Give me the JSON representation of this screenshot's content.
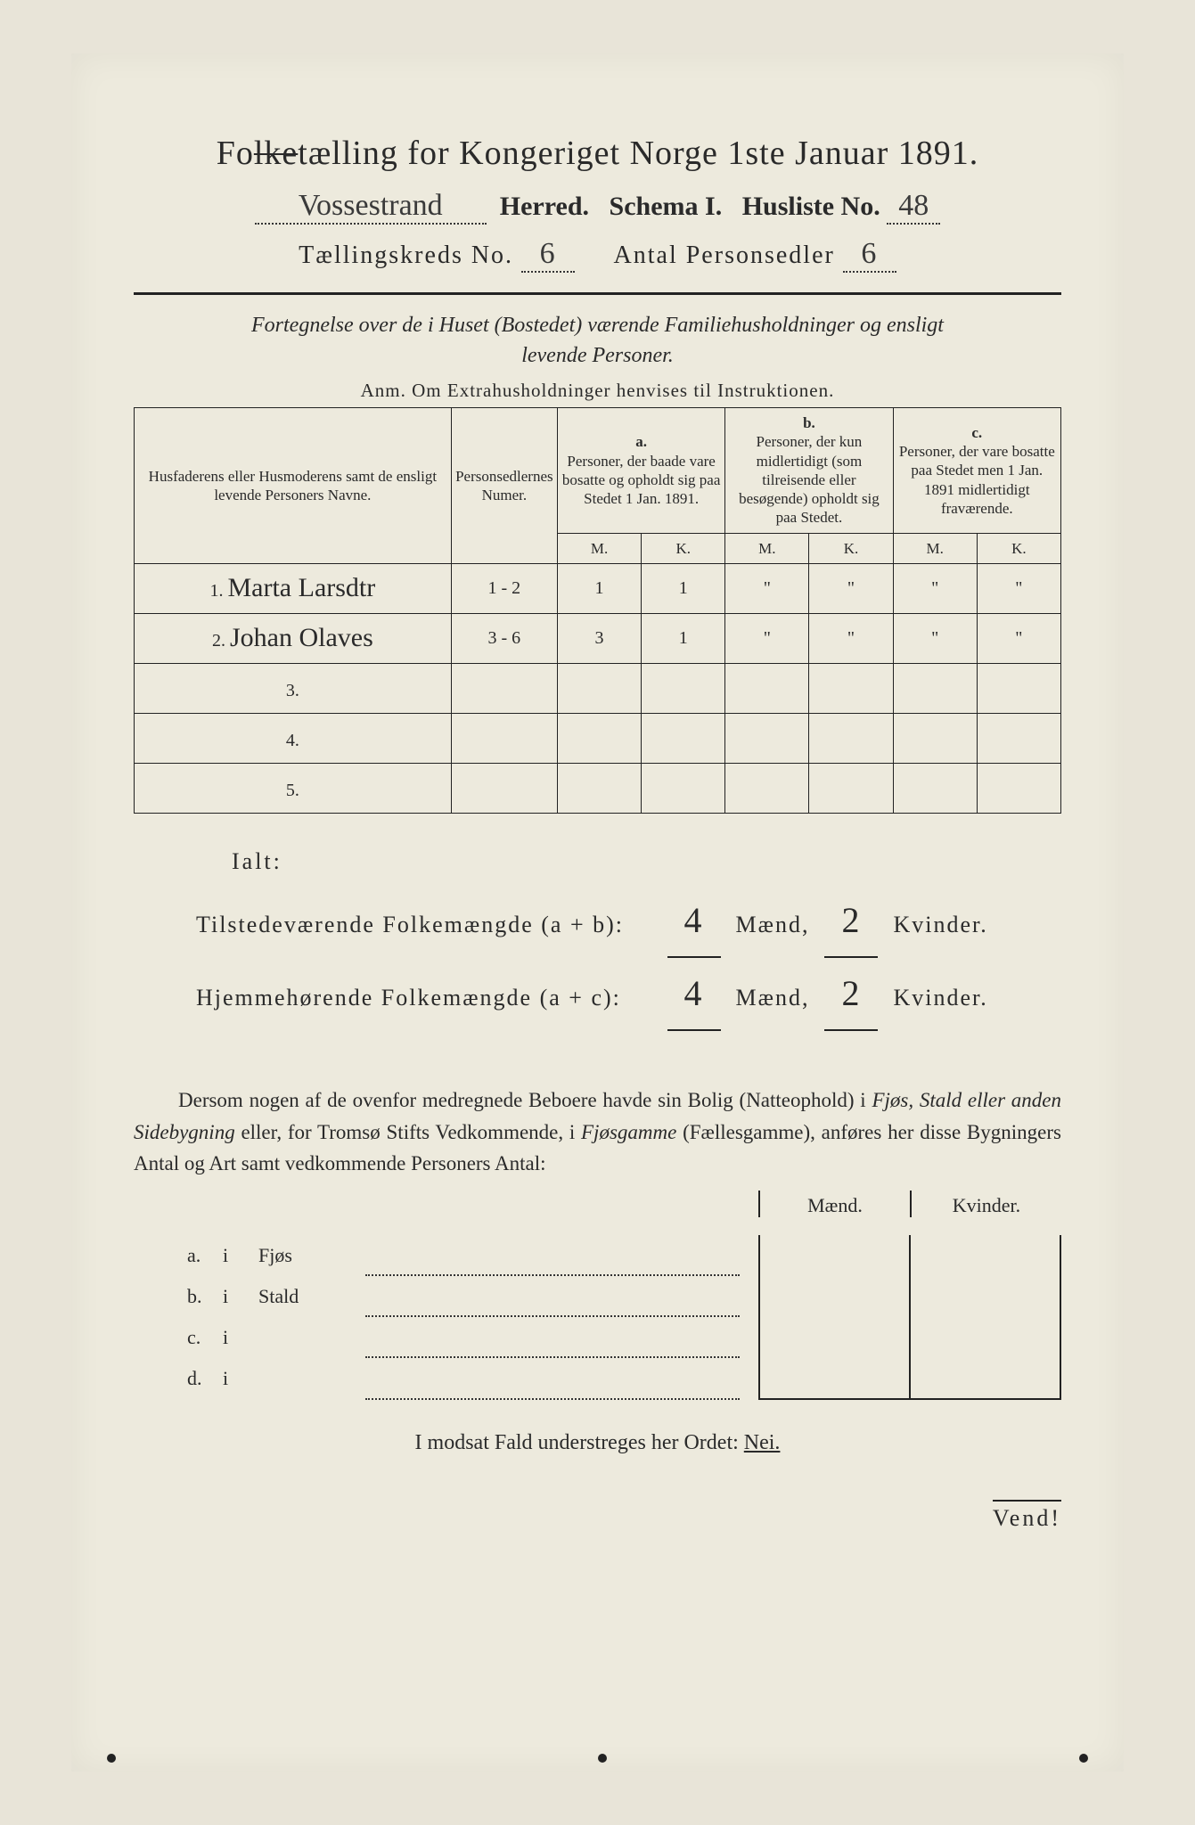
{
  "header": {
    "title_prefix": "Fo",
    "title_strike": "lke",
    "title_rest": "tælling for Kongeriget Norge 1ste Januar 1891.",
    "herred_handwritten": "Vossestrand",
    "herred_label": "Herred.",
    "schema_label": "Schema I.",
    "husliste_label": "Husliste No.",
    "husliste_no": "48",
    "kreds_label": "Tællingskreds No.",
    "kreds_no": "6",
    "antal_label": "Antal Personsedler",
    "antal_no": "6"
  },
  "subtitle": {
    "line1": "Fortegnelse over de i Huset (Bostedet) værende Familiehusholdninger og ensligt",
    "line2": "levende Personer.",
    "anm": "Anm. Om Extrahusholdninger henvises til Instruktionen."
  },
  "table": {
    "headers": {
      "col1": "Husfaderens eller Husmoderens samt de ensligt levende Personers Navne.",
      "col2": "Personsedlernes Numer.",
      "col_a_top": "a.",
      "col_a": "Personer, der baade vare bosatte og opholdt sig paa Stedet 1 Jan. 1891.",
      "col_b_top": "b.",
      "col_b": "Personer, der kun midlertidigt (som tilreisende eller besøgende) opholdt sig paa Stedet.",
      "col_c_top": "c.",
      "col_c": "Personer, der vare bosatte paa Stedet men 1 Jan. 1891 midlertidigt fraværende.",
      "m": "M.",
      "k": "K."
    },
    "row_numbers": [
      "1.",
      "2.",
      "3.",
      "4.",
      "5."
    ],
    "rows": [
      {
        "name": "Marta Larsdtr",
        "num": "1 - 2",
        "am": "1",
        "ak": "1",
        "bm": "\"",
        "bk": "\"",
        "cm": "\"",
        "ck": "\""
      },
      {
        "name": "Johan Olaves",
        "num": "3 - 6",
        "am": "3",
        "ak": "1",
        "bm": "\"",
        "bk": "\"",
        "cm": "\"",
        "ck": "\""
      },
      {
        "name": "",
        "num": "",
        "am": "",
        "ak": "",
        "bm": "",
        "bk": "",
        "cm": "",
        "ck": ""
      },
      {
        "name": "",
        "num": "",
        "am": "",
        "ak": "",
        "bm": "",
        "bk": "",
        "cm": "",
        "ck": ""
      },
      {
        "name": "",
        "num": "",
        "am": "",
        "ak": "",
        "bm": "",
        "bk": "",
        "cm": "",
        "ck": ""
      }
    ]
  },
  "totals": {
    "ialt": "Ialt:",
    "line1_label": "Tilstedeværende Folkemængde (a + b):",
    "line2_label": "Hjemmehørende Folkemængde (a + c):",
    "maend": "Mænd,",
    "kvinder": "Kvinder.",
    "v1m": "4",
    "v1k": "2",
    "v2m": "4",
    "v2k": "2"
  },
  "paragraph": {
    "text1": "Dersom nogen af de ovenfor medregnede Beboere havde sin Bolig (Natteophold) i ",
    "it1": "Fjøs, Stald eller anden Sidebygning",
    "text2": " eller, for Tromsø Stifts Vedkommende, i ",
    "it2": "Fjøsgamme",
    "text3": " (Fællesgamme), anføres her disse Bygningers Antal og Art samt vedkommende Personers Antal:"
  },
  "buildings": {
    "maend": "Mænd.",
    "kvinder": "Kvinder.",
    "rows": [
      {
        "lbl": "a.",
        "i": "i",
        "name": "Fjøs"
      },
      {
        "lbl": "b.",
        "i": "i",
        "name": "Stald"
      },
      {
        "lbl": "c.",
        "i": "i",
        "name": ""
      },
      {
        "lbl": "d.",
        "i": "i",
        "name": ""
      }
    ]
  },
  "nei_line": {
    "text": "I modsat Fald understreges her Ordet: ",
    "nei": "Nei."
  },
  "vend": "Vend!"
}
